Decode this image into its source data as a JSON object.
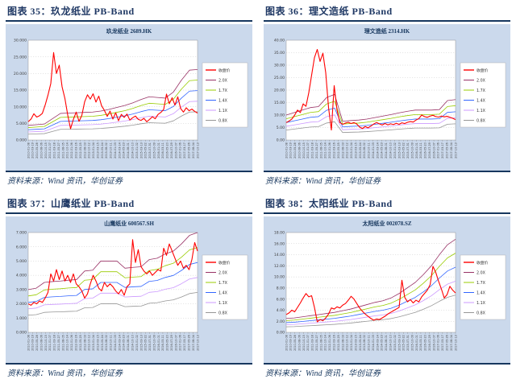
{
  "page": {
    "background": "#ffffff",
    "accent": "#17375E",
    "heading_color": "#1F3864",
    "panel_bg": "#CBD9EC"
  },
  "figures": [
    {
      "heading": "图表 35：玖龙纸业 PB-Band",
      "source": "资料来源：Wind 资讯，华创证券"
    },
    {
      "heading": "图表 36：理文造纸 PB-Band",
      "source": "资料来源：Wind 资讯，华创证券"
    },
    {
      "heading": "图表 37：山鹰纸业 PB-Band",
      "source": "资料来源：Wind 资讯，华创证券"
    },
    {
      "heading": "图表 38：太阳纸业 PB-Band",
      "source": "资料来源：Wind 资讯，华创证券"
    }
  ],
  "chart_data": {
    "type": "line",
    "legend": [
      "收盘价",
      "2.0X",
      "1.7X",
      "1.4X",
      "1.1X",
      "0.8X"
    ],
    "legend_position": "right",
    "grid": "horizontal-dashed",
    "colors": {
      "close": "#FF0000",
      "bands": [
        "#993366",
        "#99CC00",
        "#3366FF",
        "#CC99FF",
        "#969696"
      ],
      "gridline": "#BFBFBF",
      "axis": "#7F7F7F",
      "tick_text": "#404040",
      "plot_bg": "#FFFFFF",
      "legend_border": "#A6A6A6"
    },
    "band_multiples": [
      2.0,
      1.7,
      1.4,
      1.1,
      0.8
    ],
    "x_dates": [
      "2010-01-08",
      "2010-03-19",
      "2010-05-28",
      "2010-08-06",
      "2010-10-15",
      "2011-01-07",
      "2011-03-18",
      "2011-05-27",
      "2011-08-05",
      "2011-10-14",
      "2012-01-06",
      "2012-03-16",
      "2012-05-25",
      "2012-08-03",
      "2012-10-12",
      "2013-01-04",
      "2013-03-15",
      "2013-05-24",
      "2013-08-02",
      "2013-10-11",
      "2014-01-03",
      "2014-03-14",
      "2014-05-23",
      "2014-08-01",
      "2014-10-10",
      "2015-01-02",
      "2015-03-13",
      "2015-05-22",
      "2015-07-31",
      "2015-10-09",
      "2016-01-01",
      "2016-03-11",
      "2016-05-20",
      "2016-07-29",
      "2016-10-07",
      "2017-01-06",
      "2017-03-17",
      "2017-05-26",
      "2017-08-04",
      "2017-10-13"
    ],
    "charts": [
      {
        "title": "玖龙纸业 2689.HK",
        "ylim": [
          0,
          30
        ],
        "y_ticks": [
          "0.000",
          "5.000",
          "10.000",
          "15.000",
          "20.000",
          "25.000",
          "30.000"
        ],
        "close": [
          5.5,
          6.3,
          7.9,
          6.9,
          7.3,
          8.0,
          10.5,
          13.5,
          17.0,
          26.3,
          20.0,
          22.5,
          16.0,
          12.5,
          7.5,
          3.4,
          6.2,
          8.4,
          5.6,
          7.4,
          11.5,
          13.6,
          12.3,
          13.9,
          11.4,
          13.2,
          10.3,
          8.9,
          7.1,
          8.7,
          6.3,
          8.2,
          5.8,
          7.7,
          6.8,
          7.8,
          6.0,
          6.7,
          7.2,
          6.2,
          5.9,
          6.5,
          5.5,
          6.2,
          7.0,
          6.4,
          7.7,
          8.3,
          9.2,
          13.8,
          10.9,
          12.7,
          10.5,
          13.0,
          9.5,
          8.4,
          9.7,
          8.8,
          9.3,
          8.6,
          8.1
        ],
        "band_base": [
          2.2,
          2.3,
          2.4,
          3.2,
          4.0,
          4.05,
          4.1,
          4.15,
          4.2,
          4.35,
          4.6,
          4.9,
          5.2,
          5.6,
          6.1,
          6.5,
          6.4,
          6.3,
          7.2,
          9.0,
          10.5,
          10.6
        ]
      },
      {
        "title": "理文造纸 2314.HK",
        "ylim": [
          0,
          40
        ],
        "y_ticks": [
          "0.00",
          "5.00",
          "10.00",
          "15.00",
          "20.00",
          "25.00",
          "30.00",
          "35.00",
          "40.00"
        ],
        "close": [
          7.0,
          7.6,
          8.4,
          10.0,
          12.0,
          11.0,
          14.5,
          13.5,
          19.0,
          26.0,
          33.0,
          36.3,
          31.5,
          34.8,
          27.0,
          13.0,
          4.0,
          21.8,
          12.0,
          7.0,
          6.3,
          6.8,
          7.1,
          6.6,
          7.0,
          6.4,
          5.2,
          4.6,
          5.4,
          4.9,
          5.6,
          6.4,
          7.0,
          6.5,
          6.0,
          6.6,
          6.1,
          6.5,
          6.2,
          6.7,
          6.3,
          6.9,
          6.6,
          7.1,
          7.4,
          7.2,
          8.0,
          8.6,
          10.0,
          9.4,
          9.1,
          9.6,
          9.9,
          9.4,
          9.2,
          9.6,
          9.3,
          9.5,
          9.1,
          8.7,
          8.2
        ],
        "band_base": [
          5.0,
          5.5,
          6.0,
          6.5,
          6.7,
          8.5,
          9.15,
          3.75,
          3.9,
          4.0,
          4.2,
          4.5,
          4.8,
          5.1,
          5.45,
          5.75,
          6.0,
          6.0,
          6.0,
          6.1,
          7.9,
          8.1
        ]
      },
      {
        "title": "山鹰纸业 600567.SH",
        "ylim": [
          0,
          7
        ],
        "y_ticks": [
          "0.000",
          "1.000",
          "2.000",
          "3.000",
          "4.000",
          "5.000",
          "6.000",
          "7.000"
        ],
        "close": [
          2.0,
          1.9,
          2.1,
          2.0,
          2.2,
          2.1,
          2.4,
          2.8,
          4.1,
          3.6,
          4.4,
          3.7,
          4.3,
          3.6,
          4.0,
          3.5,
          4.1,
          3.4,
          3.2,
          2.9,
          2.4,
          2.7,
          3.4,
          4.0,
          3.6,
          3.1,
          2.9,
          3.5,
          3.2,
          3.4,
          3.2,
          2.9,
          2.7,
          3.0,
          2.6,
          3.2,
          3.4,
          6.5,
          4.9,
          5.8,
          4.6,
          4.3,
          4.1,
          4.3,
          4.0,
          4.2,
          4.4,
          4.3,
          5.9,
          5.4,
          6.2,
          5.7,
          5.2,
          4.7,
          5.0,
          4.5,
          4.7,
          4.4,
          5.1,
          6.3,
          5.7
        ],
        "band_base": [
          1.5,
          1.55,
          1.75,
          1.78,
          1.8,
          1.83,
          1.85,
          2.15,
          2.18,
          2.5,
          2.5,
          2.5,
          2.25,
          2.28,
          2.3,
          2.55,
          2.6,
          2.75,
          2.85,
          3.1,
          3.4,
          3.5
        ]
      },
      {
        "title": "太阳纸业 002078.SZ",
        "ylim": [
          0,
          18
        ],
        "y_ticks": [
          "0.00",
          "2.00",
          "4.00",
          "6.00",
          "8.00",
          "10.00",
          "12.00",
          "14.00",
          "16.00",
          "18.00"
        ],
        "close": [
          3.2,
          3.5,
          4.0,
          3.7,
          4.5,
          5.3,
          6.2,
          7.0,
          6.4,
          6.6,
          4.5,
          1.9,
          2.3,
          2.1,
          2.6,
          3.3,
          4.4,
          4.2,
          4.6,
          4.4,
          4.9,
          5.2,
          5.8,
          6.5,
          6.0,
          5.2,
          4.4,
          3.8,
          3.3,
          2.9,
          2.5,
          2.2,
          2.4,
          2.3,
          2.6,
          2.9,
          3.3,
          3.6,
          3.9,
          4.2,
          4.5,
          9.4,
          6.3,
          5.5,
          5.9,
          5.3,
          5.8,
          5.5,
          6.4,
          7.0,
          7.6,
          8.6,
          11.9,
          10.8,
          9.2,
          7.8,
          6.2,
          6.8,
          8.3,
          7.6,
          7.1
        ],
        "band_base": [
          1.25,
          1.3,
          1.4,
          1.5,
          1.6,
          1.7,
          1.8,
          1.95,
          2.1,
          2.3,
          2.5,
          2.7,
          2.85,
          3.1,
          3.5,
          4.0,
          4.5,
          5.2,
          6.0,
          7.0,
          7.9,
          8.4
        ]
      }
    ]
  }
}
